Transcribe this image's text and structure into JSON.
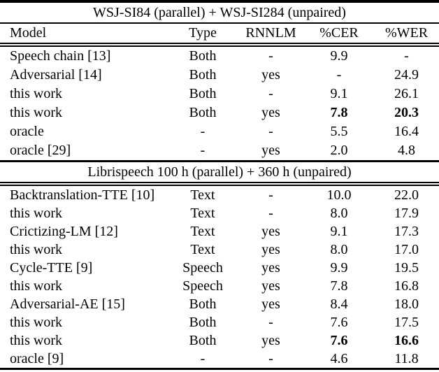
{
  "table": {
    "columns": [
      "Model",
      "Type",
      "RNNLM",
      "%CER",
      "%WER"
    ],
    "sections": [
      {
        "title": "WSJ-SI84 (parallel) + WSJ-SI284 (unpaired)",
        "rows": [
          {
            "model": "Speech chain [13]",
            "type": "Both",
            "rnnlm": "-",
            "cer": "9.9",
            "wer": "-",
            "bold": false
          },
          {
            "model": "Adversarial [14]",
            "type": "Both",
            "rnnlm": "yes",
            "cer": "-",
            "wer": "24.9",
            "bold": false
          },
          {
            "model": "this work",
            "type": "Both",
            "rnnlm": "-",
            "cer": "9.1",
            "wer": "26.1",
            "bold": false
          },
          {
            "model": "this work",
            "type": "Both",
            "rnnlm": "yes",
            "cer": "7.8",
            "wer": "20.3",
            "bold": true
          },
          {
            "model": "oracle",
            "type": "-",
            "rnnlm": "-",
            "cer": "5.5",
            "wer": "16.4",
            "bold": false
          },
          {
            "model": "oracle [29]",
            "type": "-",
            "rnnlm": "yes",
            "cer": "2.0",
            "wer": "4.8",
            "bold": false
          }
        ]
      },
      {
        "title": "Librispeech 100 h (parallel) + 360 h (unpaired)",
        "rows": [
          {
            "model": "Backtranslation-TTE [10]",
            "type": "Text",
            "rnnlm": "-",
            "cer": "10.0",
            "wer": "22.0",
            "bold": false
          },
          {
            "model": "this work",
            "type": "Text",
            "rnnlm": "-",
            "cer": "8.0",
            "wer": "17.9",
            "bold": false
          },
          {
            "model": "Crictizing-LM [12]",
            "type": "Text",
            "rnnlm": "yes",
            "cer": "9.1",
            "wer": "17.3",
            "bold": false
          },
          {
            "model": "this work",
            "type": "Text",
            "rnnlm": "yes",
            "cer": "8.0",
            "wer": "17.0",
            "bold": false
          },
          {
            "model": "Cycle-TTE [9]",
            "type": "Speech",
            "rnnlm": "yes",
            "cer": "9.9",
            "wer": "19.5",
            "bold": false
          },
          {
            "model": "this work",
            "type": "Speech",
            "rnnlm": "yes",
            "cer": "7.8",
            "wer": "16.8",
            "bold": false
          },
          {
            "model": "Adversarial-AE [15]",
            "type": "Both",
            "rnnlm": "yes",
            "cer": "8.4",
            "wer": "18.0",
            "bold": false
          },
          {
            "model": "this work",
            "type": "Both",
            "rnnlm": "-",
            "cer": "7.6",
            "wer": "17.5",
            "bold": false
          },
          {
            "model": "this work",
            "type": "Both",
            "rnnlm": "yes",
            "cer": "7.6",
            "wer": "16.6",
            "bold": true
          },
          {
            "model": "oracle [9]",
            "type": "-",
            "rnnlm": "-",
            "cer": "4.6",
            "wer": "11.8",
            "bold": false
          }
        ]
      }
    ]
  }
}
